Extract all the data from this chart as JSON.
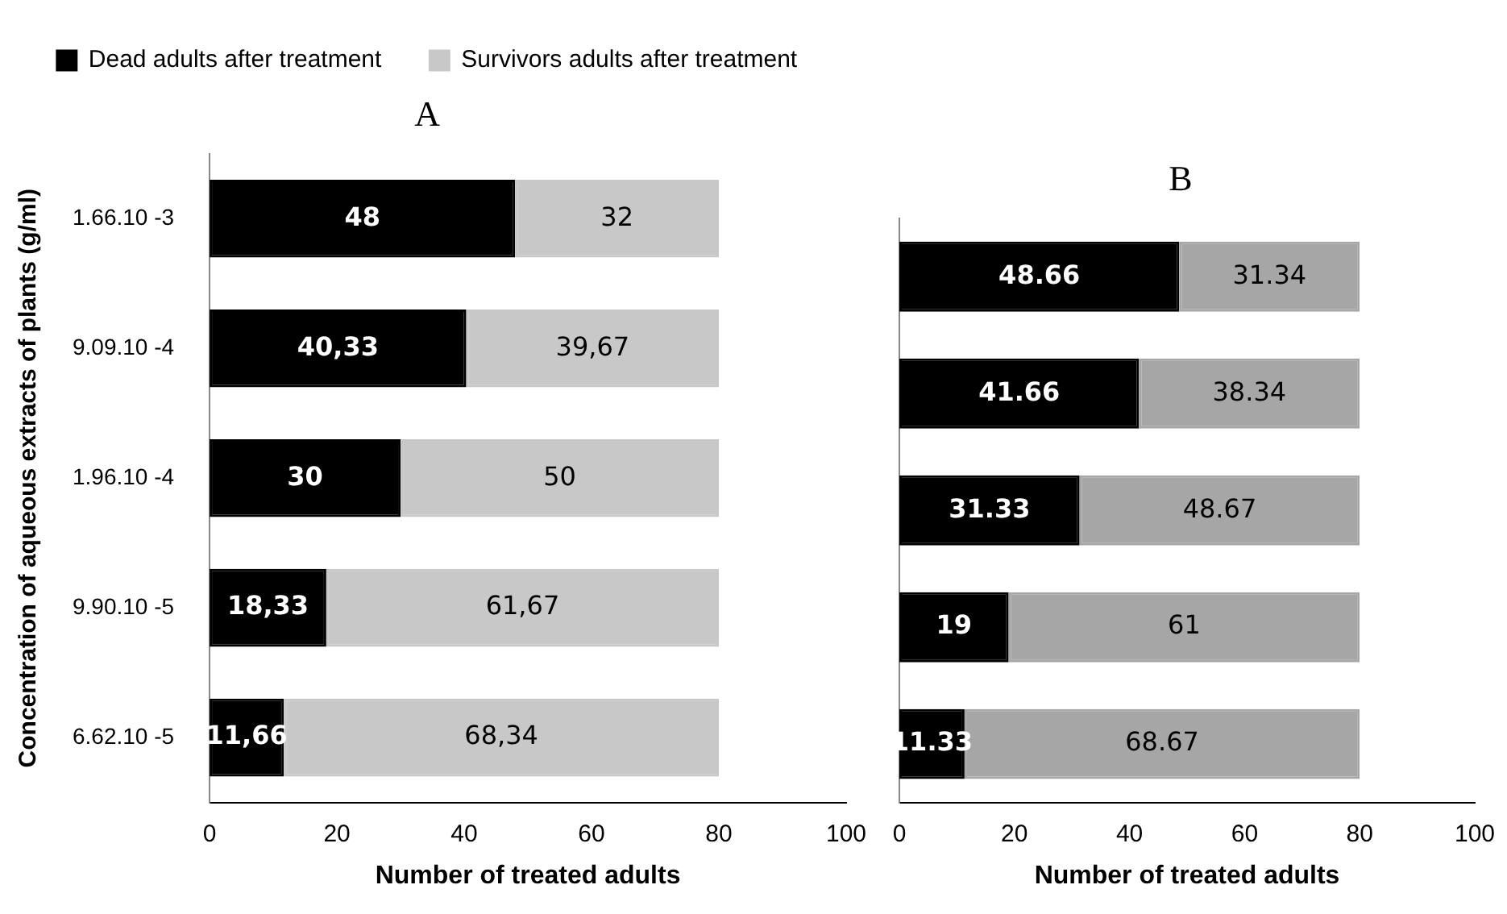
{
  "chart_data": [
    {
      "type": "bar",
      "orientation": "horizontal",
      "stacked": true,
      "title": "A",
      "xlabel": "Number of treated adults",
      "ylabel": "Concentration of aqueous extracts of plants (g/ml)",
      "categories": [
        "1.66.10 -3",
        "9.09.10 -4",
        "1.96.10 -4",
        "9.90.10 -5",
        "6.62.10 -5"
      ],
      "series": [
        {
          "name": "Dead adults after treatment",
          "color": "#000000",
          "values": [
            48,
            40.33,
            30,
            18.33,
            11.66
          ],
          "value_labels": [
            "48",
            "40,33",
            "30",
            "18,33",
            "11,66"
          ]
        },
        {
          "name": "Survivors adults after treatment",
          "color": "#c8c8c8",
          "values": [
            32,
            39.67,
            50,
            61.67,
            68.34
          ],
          "value_labels": [
            "32",
            "39,67",
            "50",
            "61,67",
            "68,34"
          ]
        }
      ],
      "xlim": [
        0,
        100
      ],
      "xticks": [
        0,
        20,
        40,
        60,
        80,
        100
      ],
      "grid": false,
      "legend": "top"
    },
    {
      "type": "bar",
      "orientation": "horizontal",
      "stacked": true,
      "title": "B",
      "xlabel": "Number of treated adults",
      "categories": [
        null,
        null,
        null,
        null,
        null
      ],
      "series": [
        {
          "color": "#000000",
          "values": [
            48.66,
            41.66,
            31.33,
            19,
            11.33
          ]
        },
        {
          "color": "#a6a6a6",
          "values": [
            31.34,
            38.34,
            48.67,
            61,
            68.67
          ]
        }
      ],
      "xlim": [
        0,
        100
      ],
      "xticks": [
        0,
        20,
        40,
        60,
        80,
        100
      ],
      "grid": false,
      "tick_labels": "x",
      "data_labels": true
    }
  ]
}
